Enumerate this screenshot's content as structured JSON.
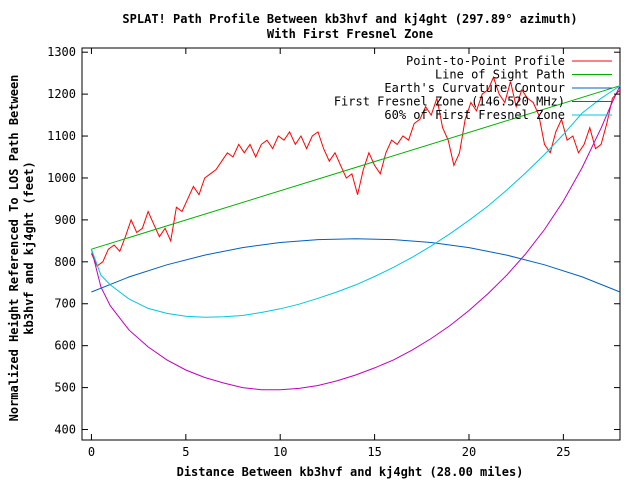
{
  "chart_data": {
    "type": "line",
    "title": "SPLAT! Path Profile Between kb3hvf and kj4ght (297.89° azimuth)",
    "subtitle": "With First Fresnel Zone",
    "xlabel": "Distance Between kb3hvf and kj4ght (28.00 miles)",
    "ylabel_line1": "Normalized Height Referenced To LOS Path Between",
    "ylabel_line2": "kb3hvf and kj4ght (feet)",
    "xlim": [
      -0.5,
      28
    ],
    "ylim": [
      375,
      1310
    ],
    "xticks": [
      0,
      5,
      10,
      15,
      20,
      25
    ],
    "yticks": [
      400,
      500,
      600,
      700,
      800,
      900,
      1000,
      1100,
      1200,
      1300
    ],
    "grid": false,
    "legend_position": "top-right",
    "series": [
      {
        "name": "Point-to-Point Profile",
        "color": "#ff0000",
        "x": [
          0.0,
          0.3,
          0.6,
          0.9,
          1.2,
          1.5,
          1.8,
          2.1,
          2.4,
          2.7,
          3.0,
          3.3,
          3.6,
          3.9,
          4.2,
          4.5,
          4.8,
          5.1,
          5.4,
          5.7,
          6.0,
          6.3,
          6.6,
          6.9,
          7.2,
          7.5,
          7.8,
          8.1,
          8.4,
          8.7,
          9.0,
          9.3,
          9.6,
          9.9,
          10.2,
          10.5,
          10.8,
          11.1,
          11.4,
          11.7,
          12.0,
          12.3,
          12.6,
          12.9,
          13.2,
          13.5,
          13.8,
          14.1,
          14.4,
          14.7,
          15.0,
          15.3,
          15.6,
          15.9,
          16.2,
          16.5,
          16.8,
          17.1,
          17.4,
          17.7,
          18.0,
          18.3,
          18.6,
          18.9,
          19.2,
          19.5,
          19.8,
          20.1,
          20.4,
          20.7,
          21.0,
          21.3,
          21.6,
          21.9,
          22.2,
          22.5,
          22.8,
          23.1,
          23.4,
          23.7,
          24.0,
          24.3,
          24.6,
          24.9,
          25.2,
          25.5,
          25.8,
          26.1,
          26.4,
          26.7,
          27.0,
          27.3,
          27.6,
          28.0
        ],
        "y": [
          820,
          790,
          800,
          830,
          840,
          825,
          860,
          900,
          870,
          880,
          920,
          890,
          860,
          880,
          850,
          930,
          920,
          950,
          980,
          960,
          1000,
          1010,
          1020,
          1040,
          1060,
          1050,
          1080,
          1060,
          1080,
          1050,
          1080,
          1090,
          1070,
          1100,
          1090,
          1110,
          1080,
          1100,
          1070,
          1100,
          1110,
          1070,
          1040,
          1060,
          1030,
          1000,
          1010,
          960,
          1020,
          1060,
          1030,
          1010,
          1060,
          1090,
          1080,
          1100,
          1090,
          1130,
          1140,
          1170,
          1150,
          1190,
          1120,
          1090,
          1030,
          1060,
          1140,
          1180,
          1160,
          1200,
          1210,
          1240,
          1200,
          1180,
          1230,
          1170,
          1210,
          1190,
          1180,
          1150,
          1080,
          1060,
          1110,
          1140,
          1090,
          1100,
          1060,
          1080,
          1120,
          1070,
          1080,
          1130,
          1190,
          1210
        ]
      },
      {
        "name": "Line of Sight Path",
        "color": "#00b000",
        "x": [
          0,
          28
        ],
        "y": [
          830,
          1220
        ]
      },
      {
        "name": "Earth's Curvature Contour",
        "color": "#0060c0",
        "x": [
          0,
          2,
          4,
          6,
          8,
          10,
          12,
          14,
          16,
          18,
          20,
          22,
          24,
          26,
          28
        ],
        "y": [
          728,
          764,
          793,
          816,
          834,
          846,
          853,
          855,
          853,
          846,
          834,
          816,
          793,
          764,
          728
        ]
      },
      {
        "name": "First Fresnel Zone (146.520 MHz)",
        "color": "#c000c0",
        "x": [
          0,
          0.5,
          1,
          2,
          3,
          4,
          5,
          6,
          7,
          8,
          9,
          10,
          11,
          12,
          13,
          14,
          15,
          16,
          17,
          18,
          19,
          20,
          21,
          22,
          23,
          24,
          25,
          26,
          27,
          27.5,
          28
        ],
        "y": [
          830,
          740,
          695,
          637,
          597,
          566,
          542,
          524,
          511,
          500,
          495,
          495,
          498,
          505,
          516,
          530,
          547,
          566,
          590,
          617,
          648,
          684,
          724,
          768,
          819,
          877,
          945,
          1025,
          1119,
          1172,
          1220
        ]
      },
      {
        "name": "60% of First Fresnel Zone",
        "color": "#00c8e0",
        "x": [
          0,
          0.5,
          1,
          2,
          3,
          4,
          5,
          6,
          7,
          8,
          9,
          10,
          11,
          12,
          13,
          14,
          15,
          16,
          17,
          18,
          19,
          20,
          21,
          22,
          23,
          24,
          25,
          26,
          27,
          27.5,
          28
        ],
        "y": [
          830,
          768,
          745,
          711,
          689,
          677,
          670,
          668,
          669,
          672,
          679,
          688,
          699,
          713,
          728,
          745,
          765,
          787,
          811,
          838,
          867,
          899,
          933,
          971,
          1012,
          1056,
          1104,
          1155,
          1190,
          1205,
          1220
        ]
      }
    ]
  }
}
